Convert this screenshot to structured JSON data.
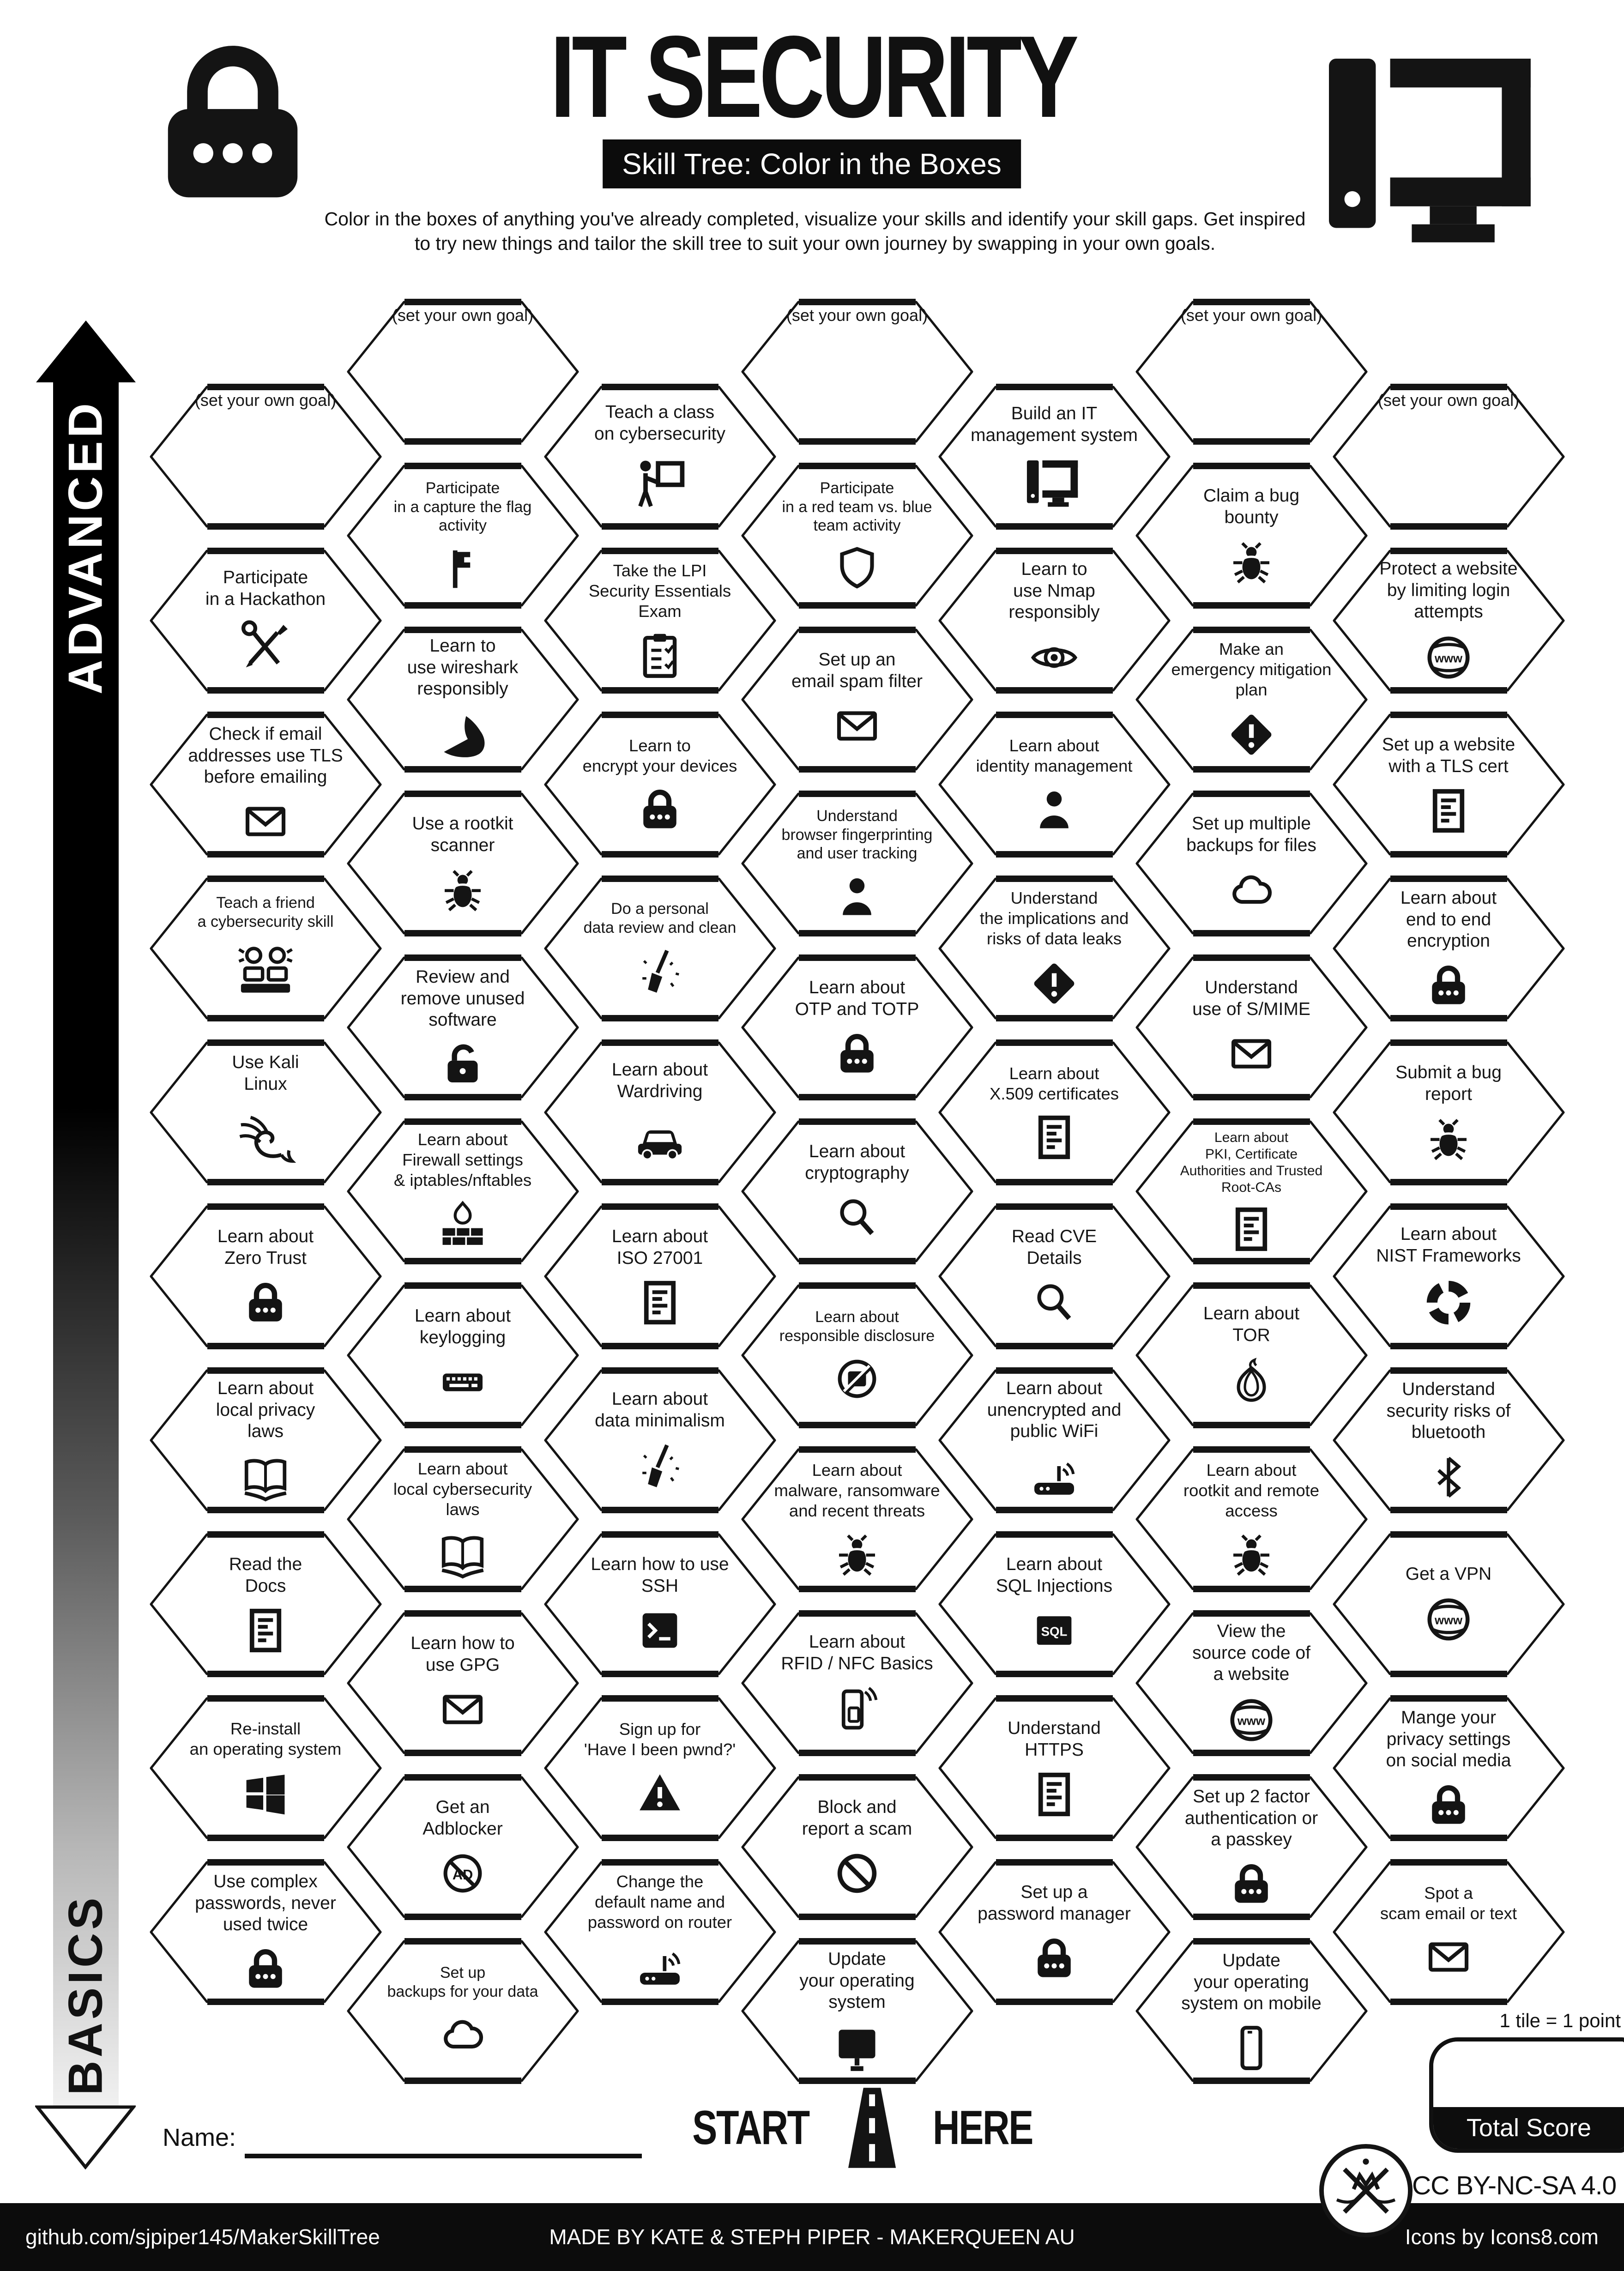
{
  "header": {
    "title": "IT SECURITY",
    "subtitle": "Skill Tree: Color in the Boxes",
    "description": "Color in the boxes of anything you've already completed, visualize your skills and identify your skill gaps.  Get inspired\nto try new things and tailor the skill tree to suit your own journey by swapping in your own goals."
  },
  "axis": {
    "advanced": "ADVANCED",
    "basics": "BASICS"
  },
  "start": {
    "left": "START",
    "right": "HERE"
  },
  "scoring": {
    "tile_note": "1 tile = 1 point",
    "total_label": "Total Score"
  },
  "name_label": "Name:",
  "license": "CC BY-NC-SA 4.0",
  "footer": {
    "left": "github.com/sjpiper145/MakerSkillTree",
    "center": "MADE BY KATE & STEPH PIPER  -  MAKERQUEEN AU",
    "right": "Icons by Icons8.com"
  },
  "colors": {
    "ink": "#0d0d0d",
    "paper": "#ffffff"
  },
  "hexes": [
    {
      "c": 0,
      "r": 0,
      "label": "(set your own goal)",
      "icon": null,
      "goal": true
    },
    {
      "c": 0,
      "r": 1,
      "label": "Participate\nin a Hackathon",
      "icon": "tools"
    },
    {
      "c": 0,
      "r": 2,
      "label": "Check if email\naddresses use TLS\nbefore emailing",
      "icon": "envelope"
    },
    {
      "c": 0,
      "r": 3,
      "label": "Teach a friend\na cybersecurity skill",
      "icon": "people"
    },
    {
      "c": 0,
      "r": 4,
      "label": "Use Kali\nLinux",
      "icon": "kali"
    },
    {
      "c": 0,
      "r": 5,
      "label": "Learn about\nZero Trust",
      "icon": "lock"
    },
    {
      "c": 0,
      "r": 6,
      "label": "Learn about\nlocal privacy\nlaws",
      "icon": "book"
    },
    {
      "c": 0,
      "r": 7,
      "label": "Read the\nDocs",
      "icon": "doc"
    },
    {
      "c": 0,
      "r": 8,
      "label": "Re-install\nan operating system",
      "icon": "windows"
    },
    {
      "c": 0,
      "r": 9,
      "label": "Use complex\npasswords, never\nused twice",
      "icon": "lock"
    },
    {
      "c": 1,
      "r": 0,
      "label": "(set your own goal)",
      "icon": null,
      "goal": true
    },
    {
      "c": 1,
      "r": 1,
      "label": "Participate\nin a capture the flag\nactivity",
      "icon": "flag"
    },
    {
      "c": 1,
      "r": 2,
      "label": "Learn to\nuse wireshark\nresponsibly",
      "icon": "shark"
    },
    {
      "c": 1,
      "r": 3,
      "label": "Use a rootkit\nscanner",
      "icon": "bug"
    },
    {
      "c": 1,
      "r": 4,
      "label": "Review and\nremove unused\nsoftware",
      "icon": "unlock"
    },
    {
      "c": 1,
      "r": 5,
      "label": "Learn about\nFirewall settings\n& iptables/nftables",
      "icon": "firewall"
    },
    {
      "c": 1,
      "r": 6,
      "label": "Learn about\nkeylogging",
      "icon": "keyboard"
    },
    {
      "c": 1,
      "r": 7,
      "label": "Learn about\nlocal cybersecurity\nlaws",
      "icon": "book"
    },
    {
      "c": 1,
      "r": 8,
      "label": "Learn how to\nuse GPG",
      "icon": "envelope"
    },
    {
      "c": 1,
      "r": 9,
      "label": "Get an\nAdblocker",
      "icon": "adblock"
    },
    {
      "c": 1,
      "r": 10,
      "label": "Set up\nbackups for your data",
      "icon": "cloud"
    },
    {
      "c": 2,
      "r": 0,
      "label": "Teach a class\non cybersecurity",
      "icon": "presenter"
    },
    {
      "c": 2,
      "r": 1,
      "label": "Take the LPI\nSecurity Essentials\nExam",
      "icon": "clipboard"
    },
    {
      "c": 2,
      "r": 2,
      "label": "Learn to\nencrypt your devices",
      "icon": "lock"
    },
    {
      "c": 2,
      "r": 3,
      "label": "Do a personal\ndata review and clean",
      "icon": "broom"
    },
    {
      "c": 2,
      "r": 4,
      "label": "Learn about\nWardriving",
      "icon": "car"
    },
    {
      "c": 2,
      "r": 5,
      "label": "Learn about\nISO 27001",
      "icon": "doc"
    },
    {
      "c": 2,
      "r": 6,
      "label": "Learn about\ndata minimalism",
      "icon": "broom"
    },
    {
      "c": 2,
      "r": 7,
      "label": "Learn how to use\nSSH",
      "icon": "terminal"
    },
    {
      "c": 2,
      "r": 8,
      "label": "Sign up for\n'Have I been pwnd?'",
      "icon": "warning"
    },
    {
      "c": 2,
      "r": 9,
      "label": "Change the\ndefault name and\npassword on router",
      "icon": "router"
    },
    {
      "c": 3,
      "r": 0,
      "label": "(set your own goal)",
      "icon": null,
      "goal": true
    },
    {
      "c": 3,
      "r": 1,
      "label": "Participate\nin a red team vs. blue\nteam activity",
      "icon": "shield"
    },
    {
      "c": 3,
      "r": 2,
      "label": "Set up an\nemail spam filter",
      "icon": "envelope"
    },
    {
      "c": 3,
      "r": 3,
      "label": "Understand\nbrowser fingerprinting\nand user tracking",
      "icon": "person"
    },
    {
      "c": 3,
      "r": 4,
      "label": "Learn about\nOTP and TOTP",
      "icon": "lock"
    },
    {
      "c": 3,
      "r": 5,
      "label": "Learn about\ncryptography",
      "icon": "magnifier"
    },
    {
      "c": 3,
      "r": 6,
      "label": "Learn about\nresponsible disclosure",
      "icon": "disclosure"
    },
    {
      "c": 3,
      "r": 7,
      "label": "Learn about\nmalware, ransomware\nand recent threats",
      "icon": "bug"
    },
    {
      "c": 3,
      "r": 8,
      "label": "Learn about\nRFID / NFC Basics",
      "icon": "phonenfc"
    },
    {
      "c": 3,
      "r": 9,
      "label": "Block and\nreport a scam",
      "icon": "nosign"
    },
    {
      "c": 3,
      "r": 10,
      "label": "Update\nyour operating\nsystem",
      "icon": "monitor"
    },
    {
      "c": 4,
      "r": 0,
      "label": "Build an IT\nmanagement system",
      "icon": "pc"
    },
    {
      "c": 4,
      "r": 1,
      "label": "Learn to\nuse Nmap\nresponsibly",
      "icon": "eye"
    },
    {
      "c": 4,
      "r": 2,
      "label": "Learn about\nidentity management",
      "icon": "person"
    },
    {
      "c": 4,
      "r": 3,
      "label": "Understand\nthe implications and\nrisks of data leaks",
      "icon": "diamond"
    },
    {
      "c": 4,
      "r": 4,
      "label": "Learn about\nX.509 certificates",
      "icon": "doc"
    },
    {
      "c": 4,
      "r": 5,
      "label": "Read CVE\nDetails",
      "icon": "magnifier"
    },
    {
      "c": 4,
      "r": 6,
      "label": "Learn about\nunencrypted and\npublic WiFi",
      "icon": "router"
    },
    {
      "c": 4,
      "r": 7,
      "label": "Learn about\nSQL Injections",
      "icon": "sql"
    },
    {
      "c": 4,
      "r": 8,
      "label": "Understand\nHTTPS",
      "icon": "doc"
    },
    {
      "c": 4,
      "r": 9,
      "label": "Set up a\npassword manager",
      "icon": "lock"
    },
    {
      "c": 5,
      "r": 0,
      "label": "(set your own goal)",
      "icon": null,
      "goal": true
    },
    {
      "c": 5,
      "r": 1,
      "label": "Claim a bug\nbounty",
      "icon": "bug"
    },
    {
      "c": 5,
      "r": 2,
      "label": "Make an\nemergency mitigation\nplan",
      "icon": "diamond"
    },
    {
      "c": 5,
      "r": 3,
      "label": "Set up multiple\nbackups for files",
      "icon": "cloud"
    },
    {
      "c": 5,
      "r": 4,
      "label": "Understand\nuse of S/MIME",
      "icon": "envelope"
    },
    {
      "c": 5,
      "r": 5,
      "label": "Learn about\nPKI, Certificate\nAuthorities and Trusted\nRoot-CAs",
      "icon": "doc"
    },
    {
      "c": 5,
      "r": 6,
      "label": "Learn about\nTOR",
      "icon": "onion"
    },
    {
      "c": 5,
      "r": 7,
      "label": "Learn about\nrootkit and remote\naccess",
      "icon": "bug"
    },
    {
      "c": 5,
      "r": 8,
      "label": "View the\nsource code of\na website",
      "icon": "globe"
    },
    {
      "c": 5,
      "r": 9,
      "label": "Set up 2 factor\nauthentication or\na passkey",
      "icon": "lock"
    },
    {
      "c": 5,
      "r": 10,
      "label": "Update\nyour operating\nsystem on mobile",
      "icon": "phone"
    },
    {
      "c": 6,
      "r": 0,
      "label": "(set your own goal)",
      "icon": null,
      "goal": true
    },
    {
      "c": 6,
      "r": 1,
      "label": "Protect a website\nby limiting login\nattempts",
      "icon": "globe"
    },
    {
      "c": 6,
      "r": 2,
      "label": "Set up a website\nwith a TLS cert",
      "icon": "doc"
    },
    {
      "c": 6,
      "r": 3,
      "label": "Learn about\nend to end\nencryption",
      "icon": "lock"
    },
    {
      "c": 6,
      "r": 4,
      "label": "Submit a bug\nreport",
      "icon": "bug"
    },
    {
      "c": 6,
      "r": 5,
      "label": "Learn about\nNIST Frameworks",
      "icon": "wheel"
    },
    {
      "c": 6,
      "r": 6,
      "label": "Understand\nsecurity risks of\nbluetooth",
      "icon": "bluetooth"
    },
    {
      "c": 6,
      "r": 7,
      "label": "Get a VPN",
      "icon": "globe"
    },
    {
      "c": 6,
      "r": 8,
      "label": "Mange your\nprivacy settings\non social media",
      "icon": "lock"
    },
    {
      "c": 6,
      "r": 9,
      "label": "Spot a\nscam email or text",
      "icon": "envelope"
    }
  ]
}
